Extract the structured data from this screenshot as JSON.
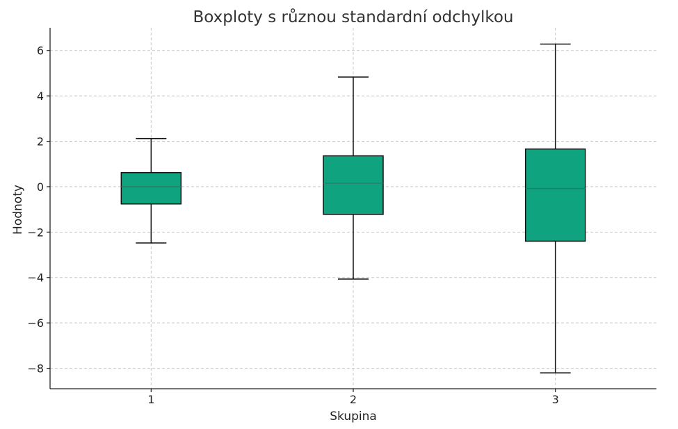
{
  "chart_data": {
    "type": "boxplot",
    "title": "Boxploty s různou standardní odchylkou",
    "xlabel": "Skupina",
    "ylabel": "Hodnoty",
    "categories": [
      "1",
      "2",
      "3"
    ],
    "boxes": [
      {
        "category": "1",
        "whisker_low": -2.48,
        "q1": -0.76,
        "median": 0.0,
        "q3": 0.62,
        "whisker_high": 2.12
      },
      {
        "category": "2",
        "whisker_low": -4.07,
        "q1": -1.22,
        "median": 0.15,
        "q3": 1.36,
        "whisker_high": 4.83
      },
      {
        "category": "3",
        "whisker_low": -8.2,
        "q1": -2.4,
        "median": -0.08,
        "q3": 1.66,
        "whisker_high": 6.28
      }
    ],
    "yticks": [
      "6",
      "4",
      "2",
      "0",
      "−2",
      "−4",
      "−6",
      "−8"
    ],
    "ytick_values": [
      6,
      4,
      2,
      0,
      -2,
      -4,
      -6,
      -8
    ],
    "xlim": [
      0.5,
      3.5
    ],
    "ylim": [
      -8.9,
      7.0
    ],
    "grid": true,
    "box_color": "#10a37f",
    "median_color": "#2a7a63"
  }
}
